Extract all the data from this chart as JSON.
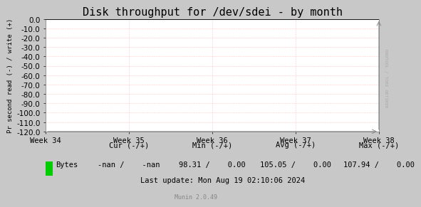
{
  "title": "Disk throughput for /dev/sdei - by month",
  "ylabel": "Pr second read (-) / write (+)",
  "x_tick_labels": [
    "Week 34",
    "Week 35",
    "Week 36",
    "Week 37",
    "Week 38"
  ],
  "ylim": [
    -120,
    0
  ],
  "yticks": [
    0.0,
    -10.0,
    -20.0,
    -30.0,
    -40.0,
    -50.0,
    -60.0,
    -70.0,
    -80.0,
    -90.0,
    -100.0,
    -110.0,
    -120.0
  ],
  "bg_color": "#c8c8c8",
  "plot_bg_color": "#ffffff",
  "grid_color": "#ff9999",
  "border_color": "#aaaaaa",
  "line_color": "#002200",
  "watermark_text": "RRDTOOL / TOBI OETIKER",
  "legend_label": "Bytes",
  "legend_color": "#00cc00",
  "last_update": "Last update: Mon Aug 19 02:10:06 2024",
  "munin_version": "Munin 2.0.49",
  "title_fontsize": 11,
  "tick_fontsize": 7.5,
  "stats_fontsize": 7.5,
  "cur_label": "Cur (-/+)",
  "min_label": "Min (-/+)",
  "avg_label": "Avg (-/+)",
  "max_label": "Max (-/+)",
  "cur_val": "-nan /    -nan",
  "min_val": "98.31 /    0.00",
  "avg_val": "105.05 /    0.00",
  "max_val": "107.94 /    0.00"
}
